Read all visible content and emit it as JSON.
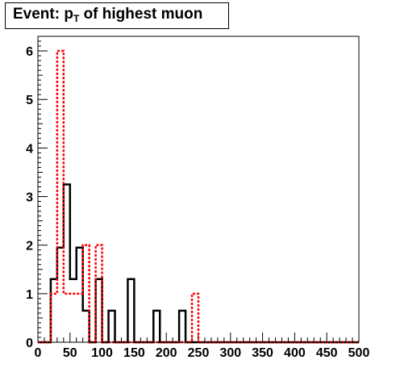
{
  "title": {
    "prefix": "Event: p",
    "subscript": "T",
    "suffix": " of highest muon"
  },
  "chart_data": {
    "type": "histogram",
    "bin_width": 10,
    "xlim": [
      0,
      500
    ],
    "ylim": [
      0,
      6.3
    ],
    "x_ticks": [
      "0",
      "50",
      "100",
      "150",
      "200",
      "250",
      "300",
      "350",
      "400",
      "450",
      "500"
    ],
    "y_ticks": [
      "0",
      "1",
      "2",
      "3",
      "4",
      "5",
      "6"
    ],
    "grid": false,
    "series": [
      {
        "style": "solid",
        "color": "#000000",
        "bins": [
          [
            0,
            0
          ],
          [
            10,
            0
          ],
          [
            20,
            1.3
          ],
          [
            30,
            1.95
          ],
          [
            40,
            3.25
          ],
          [
            50,
            1.3
          ],
          [
            60,
            1.95
          ],
          [
            70,
            0.65
          ],
          [
            80,
            0
          ],
          [
            90,
            1.3
          ],
          [
            100,
            0
          ],
          [
            110,
            0.65
          ],
          [
            120,
            0
          ],
          [
            130,
            0
          ],
          [
            140,
            1.3
          ],
          [
            150,
            0
          ],
          [
            160,
            0
          ],
          [
            170,
            0
          ],
          [
            180,
            0.65
          ],
          [
            190,
            0
          ],
          [
            200,
            0
          ],
          [
            210,
            0
          ],
          [
            220,
            0.65
          ],
          [
            230,
            0
          ]
        ]
      },
      {
        "style": "dotted",
        "color": "#ff0000",
        "bins": [
          [
            0,
            0
          ],
          [
            10,
            0
          ],
          [
            20,
            1.0
          ],
          [
            30,
            6.0
          ],
          [
            40,
            1.0
          ],
          [
            50,
            1.0
          ],
          [
            60,
            1.0
          ],
          [
            70,
            2.0
          ],
          [
            80,
            0
          ],
          [
            90,
            2.0
          ],
          [
            100,
            0
          ],
          [
            110,
            0
          ],
          [
            120,
            0
          ],
          [
            130,
            0
          ],
          [
            140,
            0
          ],
          [
            150,
            0
          ],
          [
            160,
            0
          ],
          [
            170,
            0
          ],
          [
            180,
            0
          ],
          [
            190,
            0
          ],
          [
            200,
            0
          ],
          [
            210,
            0
          ],
          [
            220,
            0
          ],
          [
            230,
            0
          ],
          [
            240,
            1.0
          ],
          [
            250,
            0
          ]
        ]
      }
    ]
  },
  "colors": {
    "frame": "#000000",
    "series_solid": "#000000",
    "series_dotted": "#ff0000"
  }
}
